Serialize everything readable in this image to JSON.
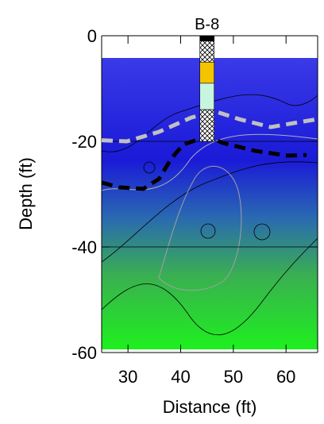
{
  "chart_data": {
    "type": "contour",
    "xlabel": "Distance (ft)",
    "ylabel": "Depth (ft)",
    "xlim": [
      25,
      66
    ],
    "ylim": [
      -60,
      0
    ],
    "xticks": [
      30,
      40,
      50,
      60
    ],
    "yticks": [
      0,
      -20,
      -40,
      -60
    ],
    "grid": true,
    "boreholes": [
      {
        "label": "B-8",
        "x": 45,
        "top": 0,
        "bottom": -20
      }
    ],
    "series": [
      {
        "color": "#c0c0c0",
        "x": [
          25,
          29.8,
          35.9,
          42,
          46.5,
          51.1,
          57.1,
          61.7,
          66
        ],
        "values": [
          -19.8,
          -20,
          -18.2,
          -15.5,
          -14.3,
          -15.8,
          -17.3,
          -16.5,
          -15.8
        ]
      },
      {
        "color": "#000000",
        "x": [
          25,
          28.3,
          32.9,
          35.9,
          38.2,
          40.5,
          45,
          48,
          54.1,
          60.2,
          63.9
        ],
        "values": [
          -27.8,
          -28.7,
          -29.0,
          -27.1,
          -23.3,
          -20.6,
          -19.1,
          -20.3,
          -21.8,
          -22.7,
          -22.6
        ]
      }
    ]
  }
}
